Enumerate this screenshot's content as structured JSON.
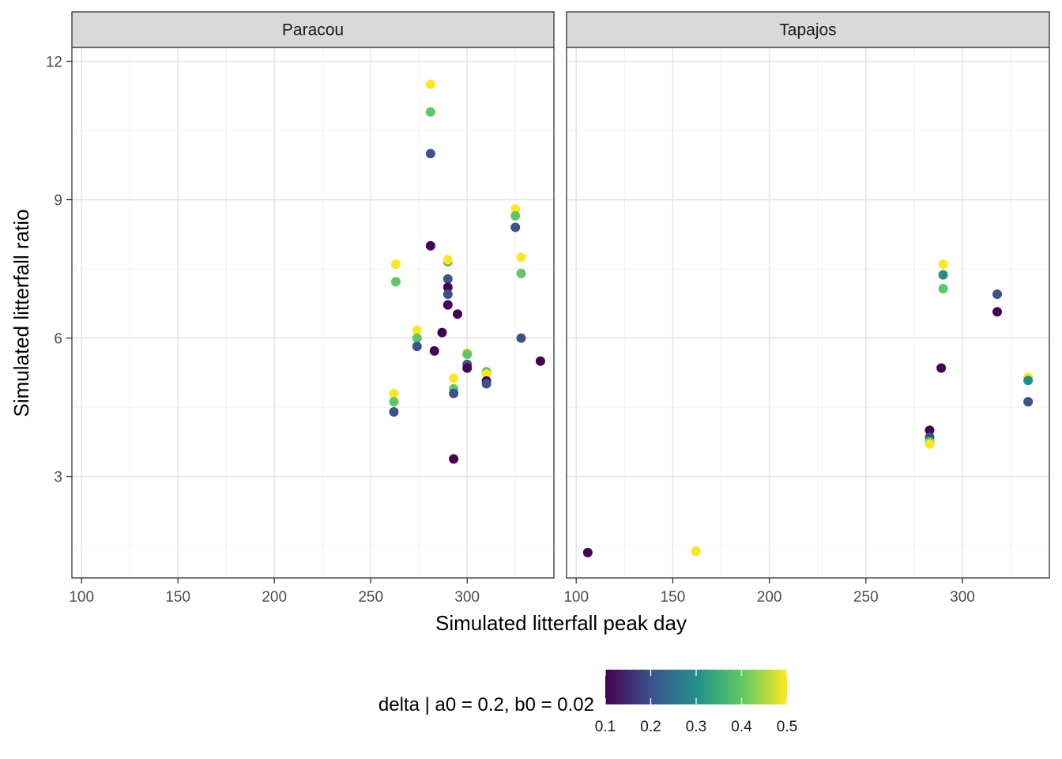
{
  "chart_data": {
    "type": "scatter",
    "xlabel": "Simulated litterfall peak day",
    "ylabel": "Simulated litterfall ratio",
    "grid": true,
    "facets": [
      "Paracou",
      "Tapajos"
    ],
    "xlim": [
      95,
      345
    ],
    "ylim": [
      0.8,
      12.3
    ],
    "x_ticks": [
      100,
      150,
      200,
      250,
      300
    ],
    "y_ticks": [
      3,
      6,
      9,
      12
    ],
    "color_scale": {
      "title": "delta | a0 = 0.2, b0 = 0.02",
      "palette": "viridis",
      "min": 0.1,
      "max": 0.5,
      "ticks": [
        0.1,
        0.2,
        0.3,
        0.4,
        0.5
      ],
      "tick_labels": [
        "0.1",
        "0.2",
        "0.3",
        "0.4",
        "0.5"
      ],
      "colors": [
        "#440154",
        "#3b528b",
        "#21908c",
        "#5dc863",
        "#fde725"
      ],
      "position": "bottom"
    },
    "panels": [
      {
        "name": "Paracou",
        "points": [
          {
            "x": 281,
            "y": 11.5,
            "delta": 0.5
          },
          {
            "x": 281,
            "y": 10.9,
            "delta": 0.4
          },
          {
            "x": 281,
            "y": 10.0,
            "delta": 0.2
          },
          {
            "x": 281,
            "y": 8.0,
            "delta": 0.1
          },
          {
            "x": 325,
            "y": 8.8,
            "delta": 0.5
          },
          {
            "x": 325,
            "y": 8.65,
            "delta": 0.4
          },
          {
            "x": 325,
            "y": 8.4,
            "delta": 0.2
          },
          {
            "x": 328,
            "y": 7.75,
            "delta": 0.5
          },
          {
            "x": 328,
            "y": 7.4,
            "delta": 0.4
          },
          {
            "x": 328,
            "y": 6.0,
            "delta": 0.2
          },
          {
            "x": 263,
            "y": 7.6,
            "delta": 0.5
          },
          {
            "x": 263,
            "y": 7.22,
            "delta": 0.4
          },
          {
            "x": 290,
            "y": 7.65,
            "delta": 0.4
          },
          {
            "x": 290,
            "y": 7.7,
            "delta": 0.5
          },
          {
            "x": 290,
            "y": 7.28,
            "delta": 0.2
          },
          {
            "x": 290,
            "y": 7.1,
            "delta": 0.1
          },
          {
            "x": 290,
            "y": 6.95,
            "delta": 0.2
          },
          {
            "x": 290,
            "y": 6.72,
            "delta": 0.1
          },
          {
            "x": 295,
            "y": 6.52,
            "delta": 0.1
          },
          {
            "x": 274,
            "y": 6.17,
            "delta": 0.5
          },
          {
            "x": 274,
            "y": 6.0,
            "delta": 0.4
          },
          {
            "x": 274,
            "y": 5.82,
            "delta": 0.2
          },
          {
            "x": 283,
            "y": 5.72,
            "delta": 0.1
          },
          {
            "x": 287,
            "y": 6.12,
            "delta": 0.1
          },
          {
            "x": 300,
            "y": 5.68,
            "delta": 0.5
          },
          {
            "x": 300,
            "y": 5.65,
            "delta": 0.4
          },
          {
            "x": 300,
            "y": 5.43,
            "delta": 0.2
          },
          {
            "x": 300,
            "y": 5.35,
            "delta": 0.1
          },
          {
            "x": 338,
            "y": 5.5,
            "delta": 0.1
          },
          {
            "x": 293,
            "y": 5.13,
            "delta": 0.5
          },
          {
            "x": 293,
            "y": 4.9,
            "delta": 0.4
          },
          {
            "x": 293,
            "y": 4.8,
            "delta": 0.2
          },
          {
            "x": 293,
            "y": 3.38,
            "delta": 0.1
          },
          {
            "x": 310,
            "y": 5.27,
            "delta": 0.4
          },
          {
            "x": 310,
            "y": 5.22,
            "delta": 0.5
          },
          {
            "x": 310,
            "y": 5.07,
            "delta": 0.1
          },
          {
            "x": 310,
            "y": 5.01,
            "delta": 0.2
          },
          {
            "x": 262,
            "y": 4.8,
            "delta": 0.5
          },
          {
            "x": 262,
            "y": 4.62,
            "delta": 0.4
          },
          {
            "x": 262,
            "y": 4.4,
            "delta": 0.2
          }
        ]
      },
      {
        "name": "Tapajos",
        "points": [
          {
            "x": 290,
            "y": 7.6,
            "delta": 0.5
          },
          {
            "x": 290,
            "y": 7.37,
            "delta": 0.3
          },
          {
            "x": 290,
            "y": 7.07,
            "delta": 0.4
          },
          {
            "x": 318,
            "y": 6.95,
            "delta": 0.2
          },
          {
            "x": 318,
            "y": 6.57,
            "delta": 0.1
          },
          {
            "x": 289,
            "y": 5.35,
            "delta": 0.1
          },
          {
            "x": 334,
            "y": 5.15,
            "delta": 0.5
          },
          {
            "x": 334,
            "y": 5.08,
            "delta": 0.3
          },
          {
            "x": 334,
            "y": 4.62,
            "delta": 0.2
          },
          {
            "x": 283,
            "y": 4.0,
            "delta": 0.1
          },
          {
            "x": 283,
            "y": 3.85,
            "delta": 0.2
          },
          {
            "x": 283,
            "y": 3.75,
            "delta": 0.4
          },
          {
            "x": 283,
            "y": 3.7,
            "delta": 0.5
          },
          {
            "x": 106,
            "y": 1.35,
            "delta": 0.1
          },
          {
            "x": 162,
            "y": 1.38,
            "delta": 0.4
          },
          {
            "x": 162,
            "y": 1.38,
            "delta": 0.5
          }
        ]
      }
    ]
  }
}
